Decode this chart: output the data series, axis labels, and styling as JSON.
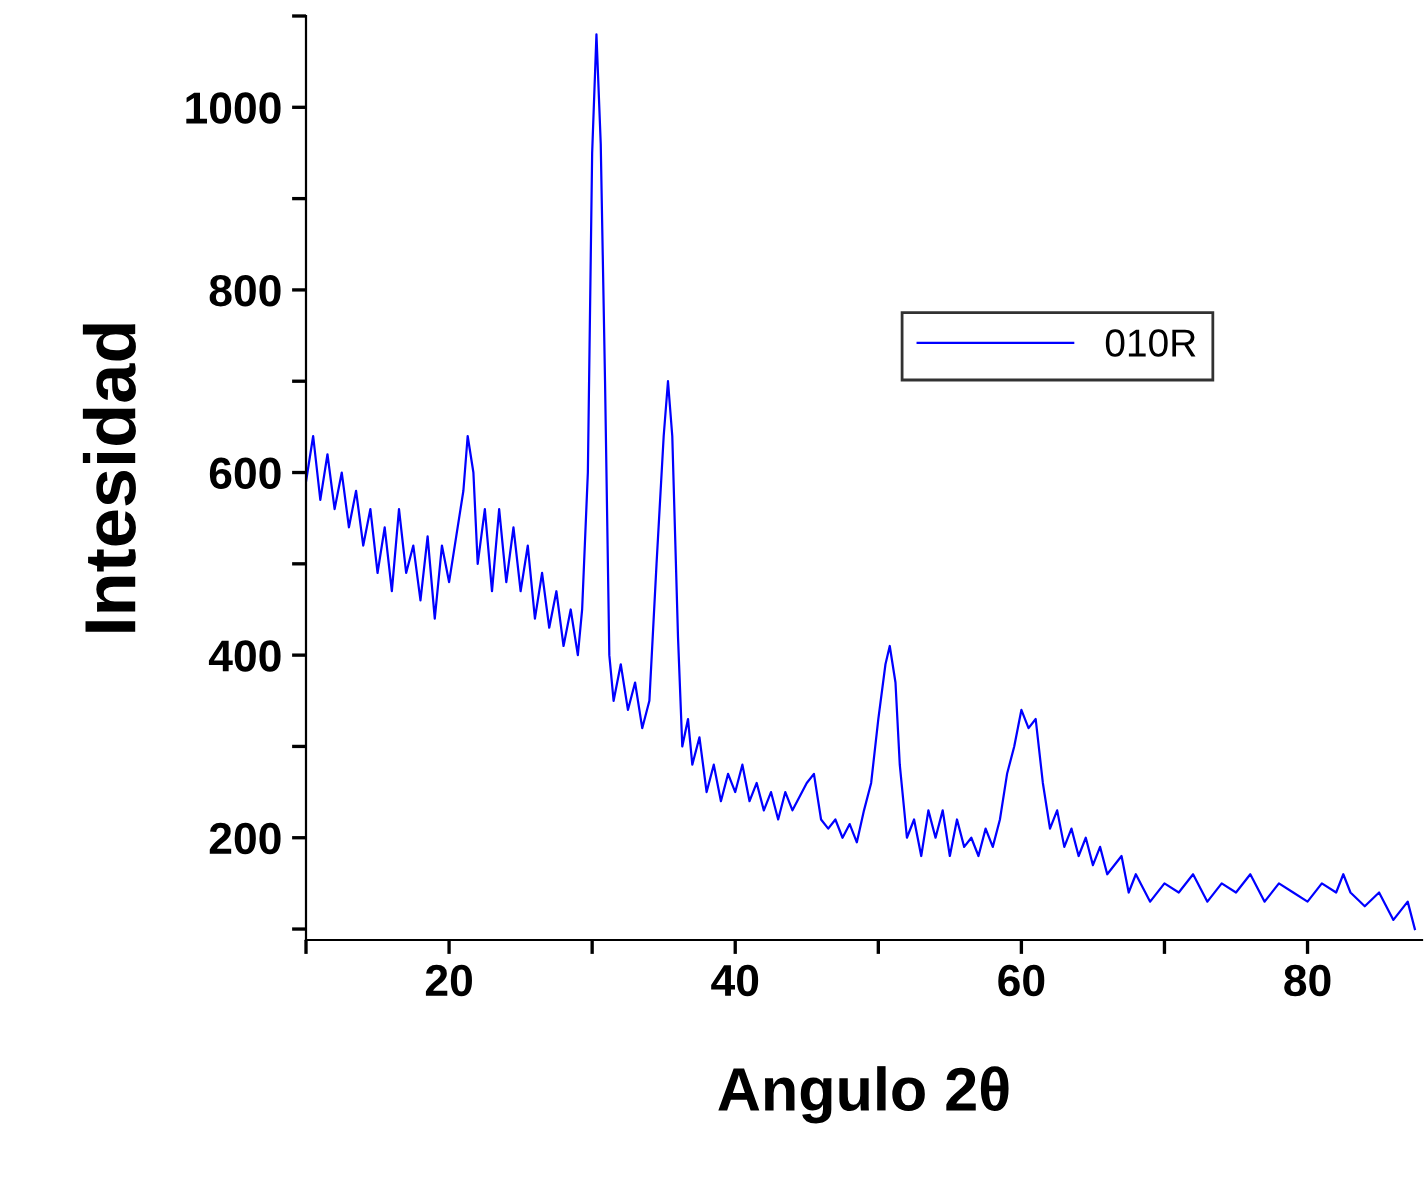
{
  "chart_data": {
    "type": "line",
    "xlabel": "Angulo 2θ",
    "ylabel": "Intesidad",
    "xlim": [
      10,
      88
    ],
    "ylim": [
      88,
      1100
    ],
    "xticks": [
      {
        "value": 10,
        "label": null
      },
      20,
      {
        "value": 30,
        "label": null
      },
      40,
      {
        "value": 50,
        "label": null
      },
      60,
      {
        "value": 70,
        "label": null
      },
      80
    ],
    "yticks": [
      {
        "value": 100,
        "label": null
      },
      200,
      {
        "value": 300,
        "label": null
      },
      400,
      {
        "value": 500,
        "label": null
      },
      600,
      {
        "value": 700,
        "label": null
      },
      800,
      {
        "value": 900,
        "label": null
      },
      1000,
      {
        "value": 1100,
        "label": null
      }
    ],
    "legend": "top right",
    "grid": false,
    "series": [
      {
        "name": "010R",
        "color": "#0000ff",
        "x": [
          10,
          10.5,
          11,
          11.5,
          12,
          12.5,
          13,
          13.5,
          14,
          14.5,
          15,
          15.5,
          16,
          16.5,
          17,
          17.5,
          18,
          18.5,
          19,
          19.5,
          20,
          20.5,
          21,
          21.3,
          21.7,
          22,
          22.5,
          23,
          23.5,
          24,
          24.5,
          25,
          25.5,
          26,
          26.5,
          27,
          27.5,
          28,
          28.5,
          29,
          29.3,
          29.7,
          30,
          30.3,
          30.6,
          30.9,
          31.2,
          31.5,
          32,
          32.5,
          33,
          33.5,
          34,
          34.5,
          35,
          35.3,
          35.6,
          36,
          36.3,
          36.7,
          37,
          37.5,
          38,
          38.5,
          39,
          39.5,
          40,
          40.5,
          41,
          41.5,
          42,
          42.5,
          43,
          43.5,
          44,
          45,
          45.5,
          46,
          46.5,
          47,
          47.5,
          48,
          48.5,
          49,
          49.5,
          50,
          50.5,
          50.8,
          51.2,
          51.5,
          52,
          52.5,
          53,
          53.5,
          54,
          54.5,
          55,
          55.5,
          56,
          56.5,
          57,
          57.5,
          58,
          58.5,
          59,
          59.5,
          60,
          60.5,
          61,
          61.5,
          62,
          62.5,
          63,
          63.5,
          64,
          64.5,
          65,
          65.5,
          66,
          67,
          67.5,
          68,
          69,
          70,
          71,
          72,
          73,
          74,
          75,
          76,
          77,
          78,
          79,
          80,
          81,
          82,
          82.5,
          83,
          84,
          85,
          86,
          87,
          87.5
        ],
        "values": [
          590,
          640,
          570,
          620,
          560,
          600,
          540,
          580,
          520,
          560,
          490,
          540,
          470,
          560,
          490,
          520,
          460,
          530,
          440,
          520,
          480,
          530,
          580,
          640,
          600,
          500,
          560,
          470,
          560,
          480,
          540,
          470,
          520,
          440,
          490,
          430,
          470,
          410,
          450,
          400,
          450,
          600,
          950,
          1080,
          960,
          700,
          400,
          350,
          390,
          340,
          370,
          320,
          350,
          500,
          640,
          700,
          640,
          420,
          300,
          330,
          280,
          310,
          250,
          280,
          240,
          270,
          250,
          280,
          240,
          260,
          230,
          250,
          220,
          250,
          230,
          260,
          270,
          220,
          210,
          220,
          200,
          215,
          195,
          230,
          260,
          330,
          390,
          410,
          370,
          280,
          200,
          220,
          180,
          230,
          200,
          230,
          180,
          220,
          190,
          200,
          180,
          210,
          190,
          220,
          270,
          300,
          340,
          320,
          330,
          260,
          210,
          230,
          190,
          210,
          180,
          200,
          170,
          190,
          160,
          180,
          140,
          160,
          130,
          150,
          140,
          160,
          130,
          150,
          140,
          160,
          130,
          150,
          140,
          130,
          150,
          140,
          160,
          140,
          125,
          140,
          110,
          130,
          100
        ]
      }
    ]
  }
}
